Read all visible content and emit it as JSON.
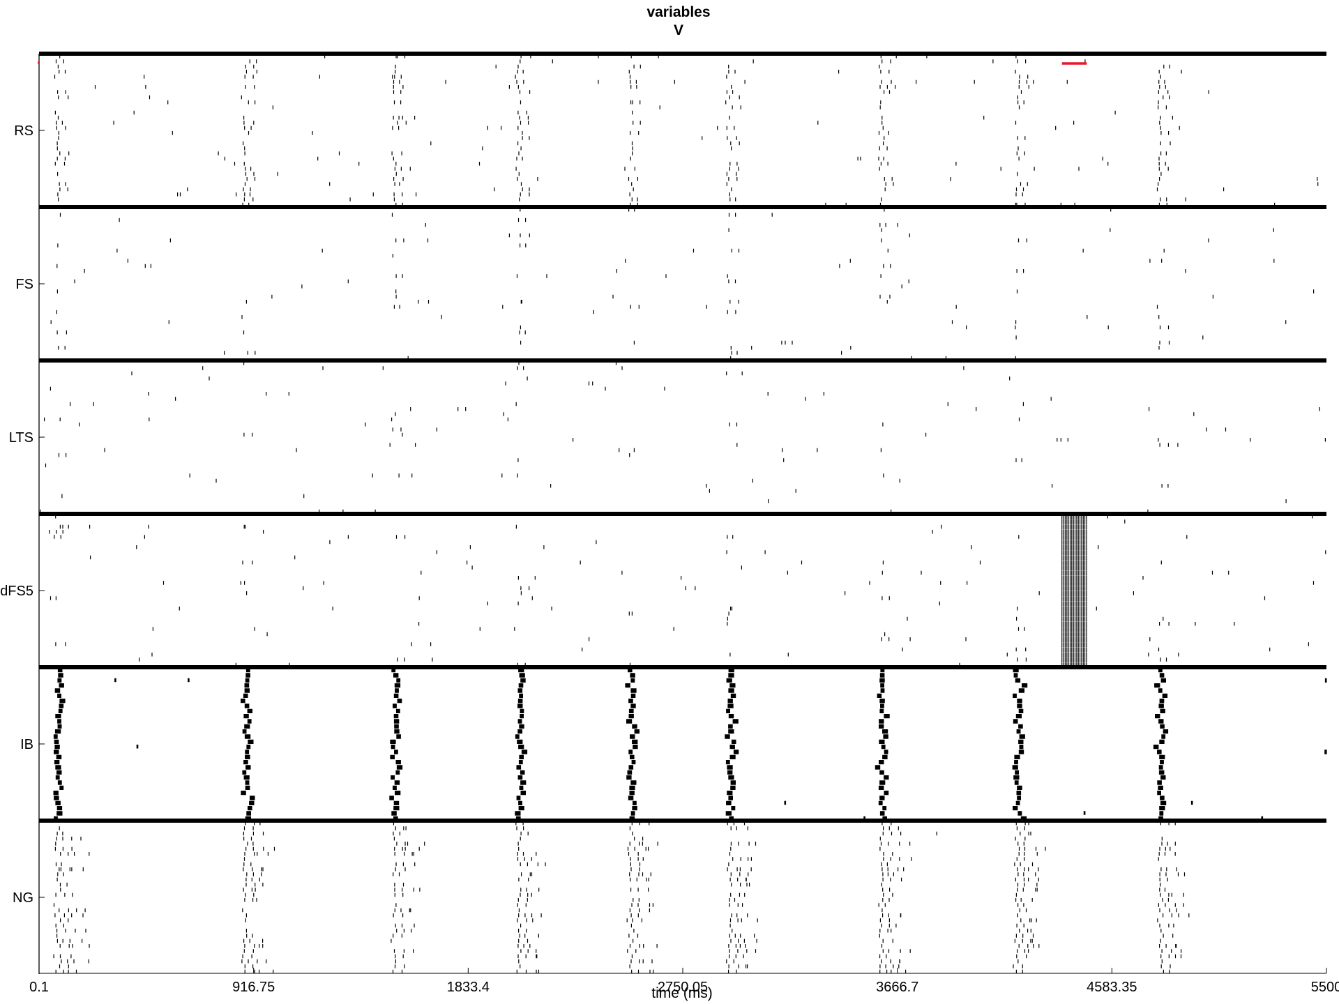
{
  "chart_data": {
    "type": "raster",
    "title_lines": [
      "variables",
      "V"
    ],
    "xlabel": "time (ms)",
    "xlim": [
      0.1,
      5500
    ],
    "xticks": [
      "0.1",
      "916.75",
      "1833.4",
      "2750.05",
      "3666.7",
      "4583.35",
      "5500"
    ],
    "grid": false,
    "populations": [
      {
        "name": "RS",
        "rows": 30,
        "sync_cells": 22,
        "background_rate": 0.0065,
        "long_bursts": false
      },
      {
        "name": "FS",
        "rows": 30,
        "sync_cells": 6,
        "background_rate": 0.0042,
        "long_bursts": false
      },
      {
        "name": "LTS",
        "rows": 30,
        "sync_cells": 2,
        "background_rate": 0.0055,
        "long_bursts": false
      },
      {
        "name": "dFS5",
        "rows": 30,
        "sync_cells": 4,
        "background_rate": 0.0065,
        "long_bursts": false
      },
      {
        "name": "IB",
        "rows": 30,
        "sync_cells": 30,
        "background_rate": 0.0005,
        "long_bursts": true
      },
      {
        "name": "NG",
        "rows": 30,
        "sync_cells": 28,
        "background_rate": 0.0001,
        "long_bursts": false
      }
    ],
    "sync_events_ms": [
      80,
      880,
      1520,
      2050,
      2530,
      2950,
      3600,
      4180,
      4790,
      5520
    ],
    "spike_color": "#000000",
    "marker_color": "#e8192c",
    "stimulus_marker_ms": [
      4370,
      4476
    ],
    "dense_block": {
      "population": "dFS5",
      "start_ms": 4370,
      "end_ms": 4476
    }
  }
}
